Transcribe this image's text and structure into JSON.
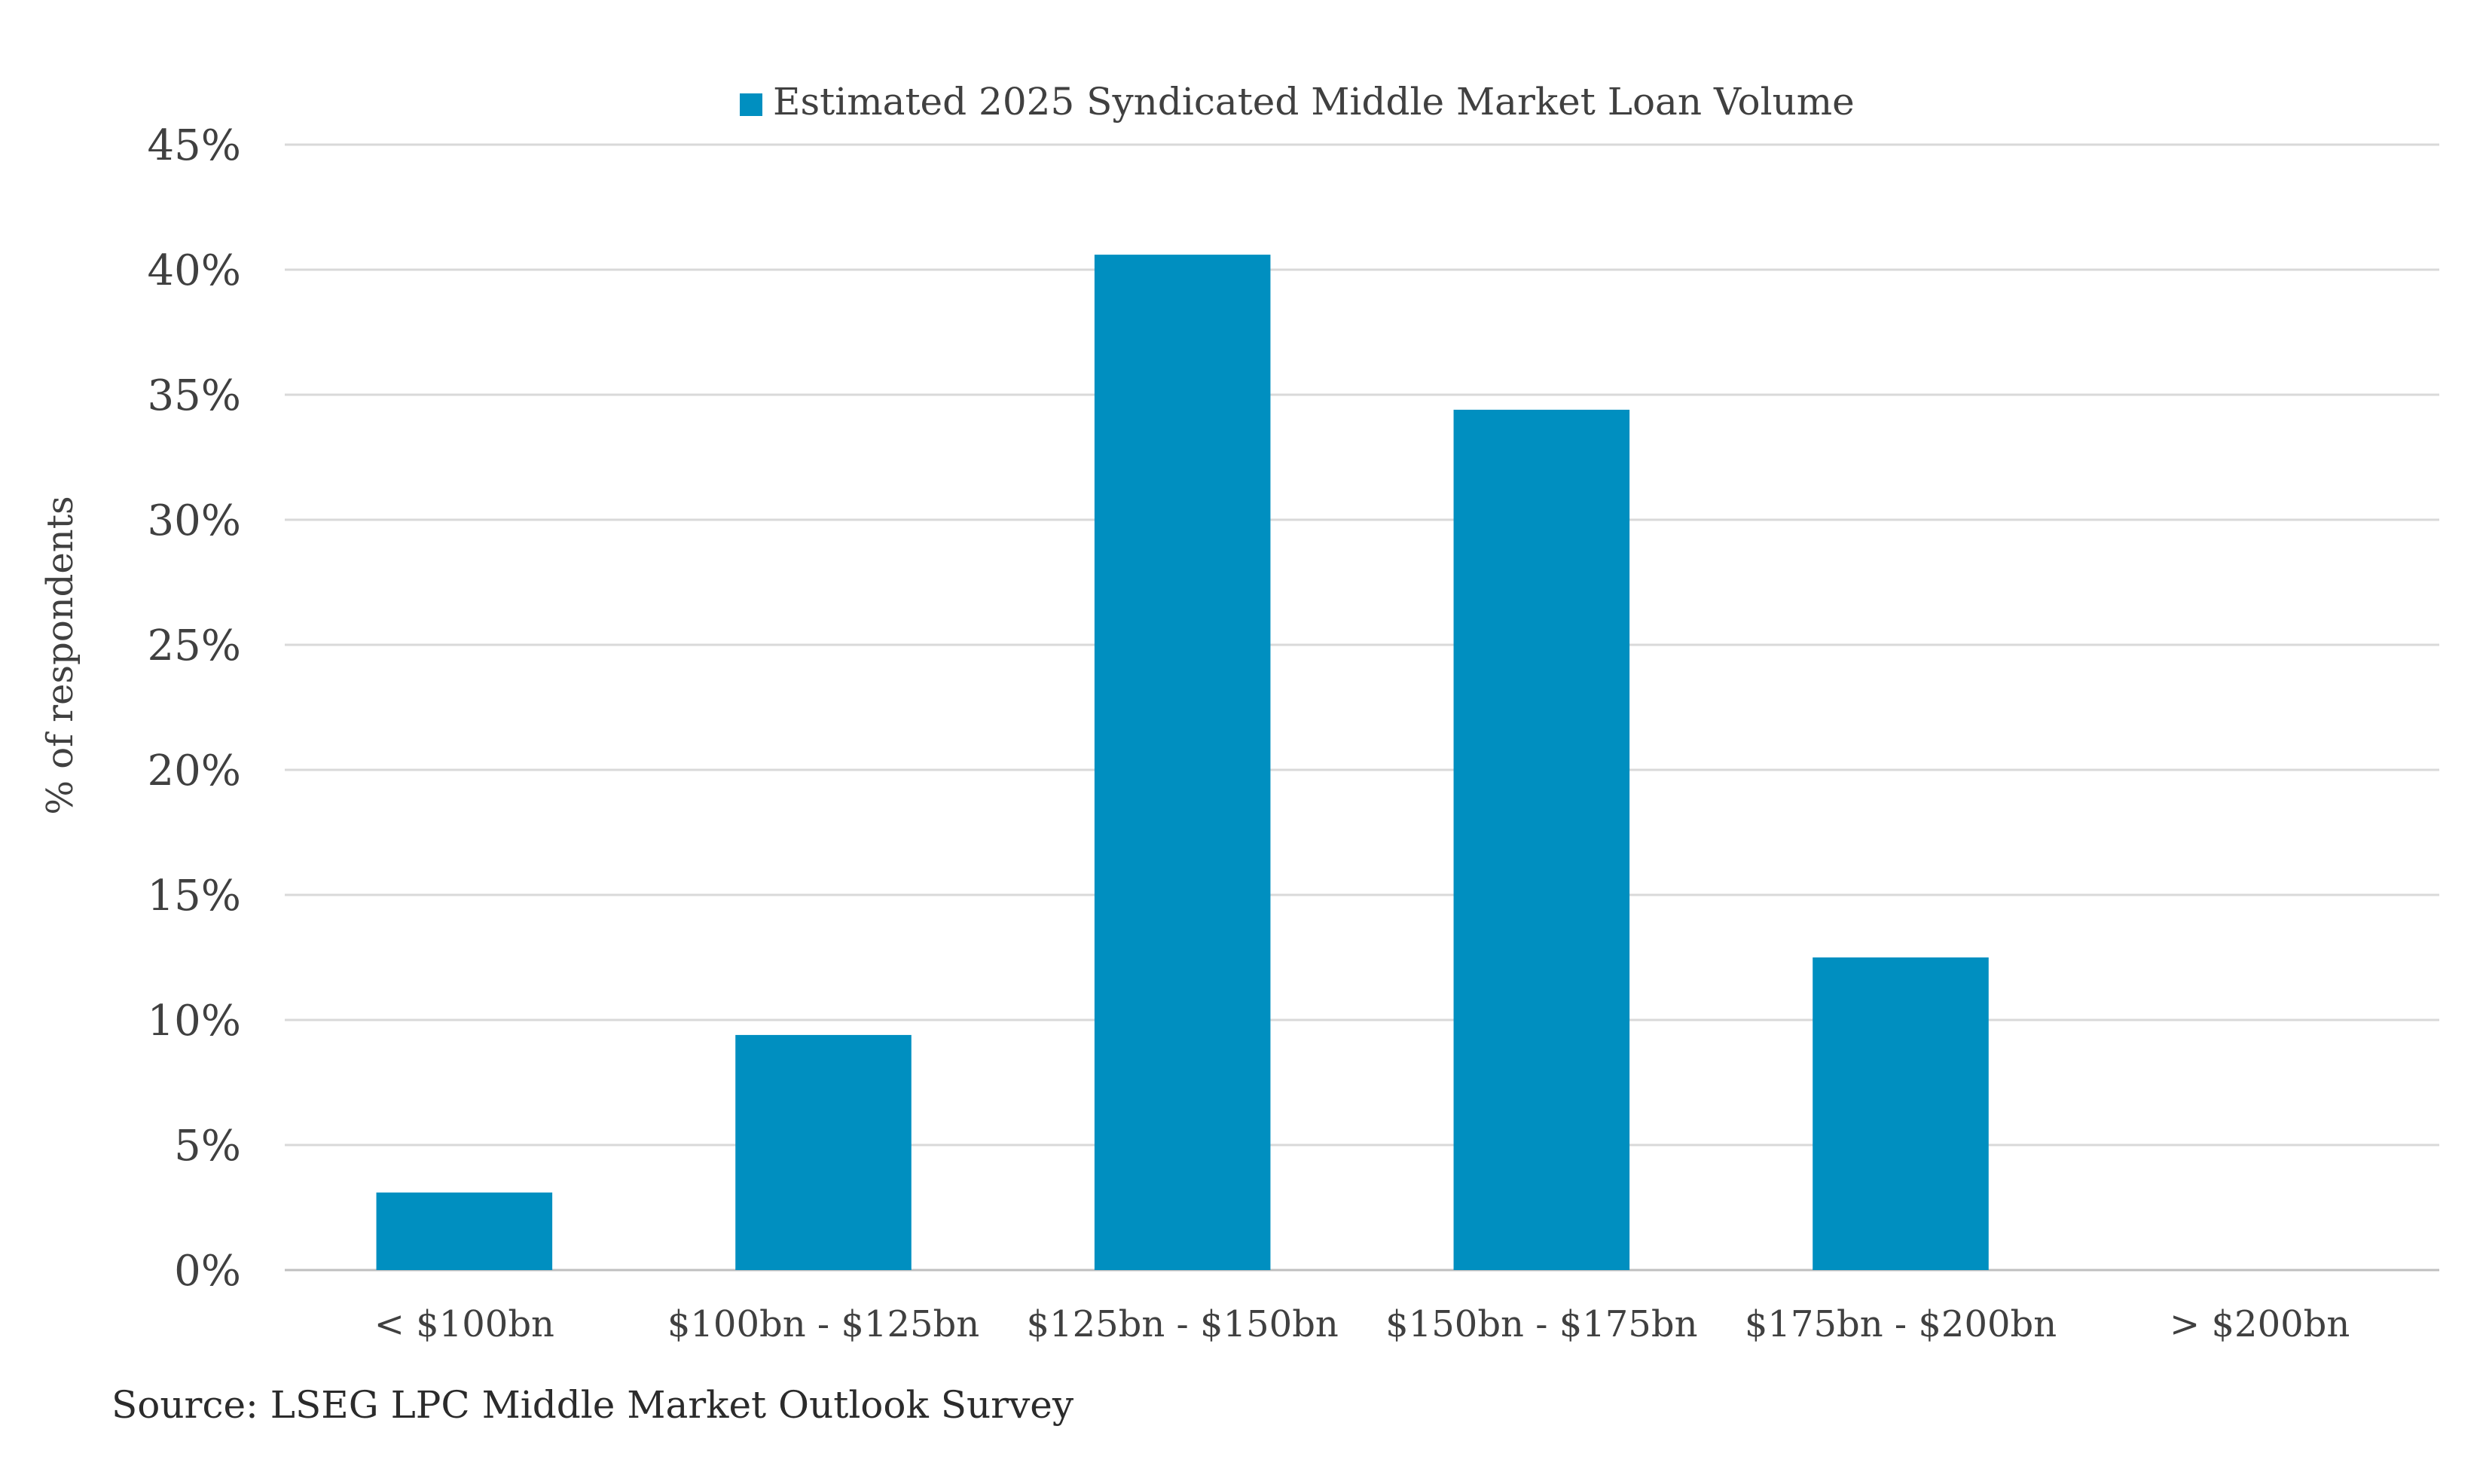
{
  "chart_data": {
    "type": "bar",
    "categories": [
      "< $100bn",
      "$100bn - $125bn",
      "$125bn - $150bn",
      "$150bn - $175bn",
      "$175bn - $200bn",
      "> $200bn"
    ],
    "series": [
      {
        "name": "Estimated 2025 Syndicated Middle Market Loan Volume",
        "values": [
          3.1,
          9.4,
          40.6,
          34.4,
          12.5,
          0
        ],
        "color": "#008FC0"
      }
    ],
    "ylabel": "% of respondents",
    "xlabel": "",
    "ylim": [
      0,
      45
    ],
    "yticks": [
      "0%",
      "5%",
      "10%",
      "15%",
      "20%",
      "25%",
      "30%",
      "35%",
      "40%",
      "45%"
    ],
    "grid": true,
    "legend_position": "top-center"
  },
  "source": "Source: LSEG LPC Middle Market Outlook Survey"
}
